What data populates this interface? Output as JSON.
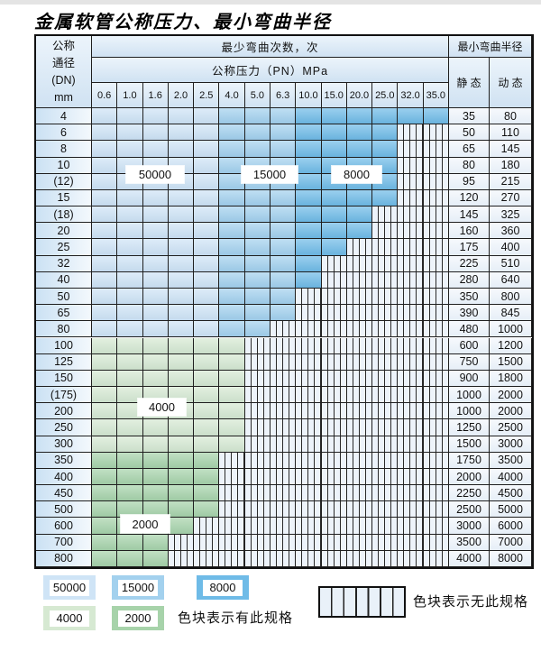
{
  "title": "金属软管公称压力、最小弯曲半径",
  "header": {
    "dn_lines": [
      "公称",
      "通径",
      "(DN)",
      "mm"
    ],
    "cycles_label": "最少弯曲次数，次",
    "radius_label": "最小弯曲半径",
    "pressure_label": "公称压力（PN）MPa",
    "static_label": "静 态",
    "dynamic_label": "动 态"
  },
  "chart_data": {
    "type": "heatmap-table",
    "title": "金属软管公称压力、最小弯曲半径",
    "x_axis_label": "公称压力（PN）MPa",
    "y_axis_label": "公称通径 (DN) mm",
    "columns_pn_mpa": [
      "0.6",
      "1.0",
      "1.6",
      "2.0",
      "2.5",
      "4.0",
      "5.0",
      "6.3",
      "10.0",
      "15.0",
      "20.0",
      "25.0",
      "32.0",
      "35.0"
    ],
    "blue_shade_zones": [
      {
        "cycles": "50000",
        "pn_columns": [
          "0.6",
          "1.0",
          "1.6",
          "2.0",
          "2.5"
        ],
        "col_idx_range": [
          0,
          4
        ]
      },
      {
        "cycles": "15000",
        "pn_columns": [
          "4.0",
          "5.0",
          "6.3"
        ],
        "col_idx_range": [
          5,
          7
        ]
      },
      {
        "cycles": "8000",
        "pn_columns": [
          "10.0",
          "15.0",
          "20.0",
          "25.0",
          "32.0",
          "35.0"
        ],
        "col_idx_range": [
          8,
          13
        ]
      }
    ],
    "green_zones": [
      {
        "cycles": "4000",
        "zone": "green-light",
        "dn_rows": [
          "100",
          "125",
          "150",
          "(175)",
          "200",
          "250",
          "300"
        ]
      },
      {
        "cycles": "2000",
        "zone": "green-dark",
        "dn_rows": [
          "350",
          "400",
          "450",
          "500",
          "600",
          "700",
          "800"
        ]
      }
    ],
    "rows": [
      {
        "dn": "4",
        "zone": "blue",
        "colored_cols": 14,
        "spec_through_pn": "35.0",
        "static_radius": "35",
        "dynamic_radius": "80"
      },
      {
        "dn": "6",
        "zone": "blue",
        "colored_cols": 12,
        "spec_through_pn": "25.0",
        "static_radius": "50",
        "dynamic_radius": "110"
      },
      {
        "dn": "8",
        "zone": "blue",
        "colored_cols": 12,
        "spec_through_pn": "25.0",
        "static_radius": "65",
        "dynamic_radius": "145"
      },
      {
        "dn": "10",
        "zone": "blue",
        "colored_cols": 12,
        "spec_through_pn": "25.0",
        "static_radius": "80",
        "dynamic_radius": "180"
      },
      {
        "dn": "(12)",
        "zone": "blue",
        "colored_cols": 12,
        "spec_through_pn": "25.0",
        "static_radius": "95",
        "dynamic_radius": "215"
      },
      {
        "dn": "15",
        "zone": "blue",
        "colored_cols": 12,
        "spec_through_pn": "25.0",
        "static_radius": "120",
        "dynamic_radius": "270"
      },
      {
        "dn": "(18)",
        "zone": "blue",
        "colored_cols": 11,
        "spec_through_pn": "20.0",
        "static_radius": "145",
        "dynamic_radius": "325"
      },
      {
        "dn": "20",
        "zone": "blue",
        "colored_cols": 11,
        "spec_through_pn": "20.0",
        "static_radius": "160",
        "dynamic_radius": "360"
      },
      {
        "dn": "25",
        "zone": "blue",
        "colored_cols": 10,
        "spec_through_pn": "15.0",
        "static_radius": "175",
        "dynamic_radius": "400"
      },
      {
        "dn": "32",
        "zone": "blue",
        "colored_cols": 9,
        "spec_through_pn": "10.0",
        "static_radius": "225",
        "dynamic_radius": "510"
      },
      {
        "dn": "40",
        "zone": "blue",
        "colored_cols": 9,
        "spec_through_pn": "10.0",
        "static_radius": "280",
        "dynamic_radius": "640"
      },
      {
        "dn": "50",
        "zone": "blue",
        "colored_cols": 8,
        "spec_through_pn": "6.3",
        "static_radius": "350",
        "dynamic_radius": "800"
      },
      {
        "dn": "65",
        "zone": "blue",
        "colored_cols": 8,
        "spec_through_pn": "6.3",
        "static_radius": "390",
        "dynamic_radius": "845"
      },
      {
        "dn": "80",
        "zone": "blue",
        "colored_cols": 7,
        "spec_through_pn": "5.0",
        "static_radius": "480",
        "dynamic_radius": "1000"
      },
      {
        "dn": "100",
        "zone": "green-light",
        "colored_cols": 6,
        "spec_through_pn": "4.0",
        "static_radius": "600",
        "dynamic_radius": "1200"
      },
      {
        "dn": "125",
        "zone": "green-light",
        "colored_cols": 6,
        "spec_through_pn": "4.0",
        "static_radius": "750",
        "dynamic_radius": "1500"
      },
      {
        "dn": "150",
        "zone": "green-light",
        "colored_cols": 6,
        "spec_through_pn": "4.0",
        "static_radius": "900",
        "dynamic_radius": "1800"
      },
      {
        "dn": "(175)",
        "zone": "green-light",
        "colored_cols": 6,
        "spec_through_pn": "4.0",
        "static_radius": "1000",
        "dynamic_radius": "2000"
      },
      {
        "dn": "200",
        "zone": "green-light",
        "colored_cols": 6,
        "spec_through_pn": "4.0",
        "static_radius": "1000",
        "dynamic_radius": "2000"
      },
      {
        "dn": "250",
        "zone": "green-light",
        "colored_cols": 6,
        "spec_through_pn": "4.0",
        "static_radius": "1250",
        "dynamic_radius": "2500"
      },
      {
        "dn": "300",
        "zone": "green-light",
        "colored_cols": 6,
        "spec_through_pn": "4.0",
        "static_radius": "1500",
        "dynamic_radius": "3000"
      },
      {
        "dn": "350",
        "zone": "green-dark",
        "colored_cols": 5,
        "spec_through_pn": "2.5",
        "static_radius": "1750",
        "dynamic_radius": "3500"
      },
      {
        "dn": "400",
        "zone": "green-dark",
        "colored_cols": 5,
        "spec_through_pn": "2.5",
        "static_radius": "2000",
        "dynamic_radius": "4000"
      },
      {
        "dn": "450",
        "zone": "green-dark",
        "colored_cols": 5,
        "spec_through_pn": "2.5",
        "static_radius": "2250",
        "dynamic_radius": "4500"
      },
      {
        "dn": "500",
        "zone": "green-dark",
        "colored_cols": 5,
        "spec_through_pn": "2.5",
        "static_radius": "2500",
        "dynamic_radius": "5000"
      },
      {
        "dn": "600",
        "zone": "green-dark",
        "colored_cols": 4,
        "spec_through_pn": "2.0",
        "static_radius": "3000",
        "dynamic_radius": "6000"
      },
      {
        "dn": "700",
        "zone": "green-dark",
        "colored_cols": 3,
        "spec_through_pn": "1.6",
        "static_radius": "3500",
        "dynamic_radius": "7000"
      },
      {
        "dn": "800",
        "zone": "green-dark",
        "colored_cols": 3,
        "spec_through_pn": "1.6",
        "static_radius": "4000",
        "dynamic_radius": "8000"
      }
    ],
    "cycle_labels_in_table": [
      {
        "text": "50000"
      },
      {
        "text": "15000"
      },
      {
        "text": "8000"
      },
      {
        "text": "4000"
      },
      {
        "text": "2000"
      }
    ]
  },
  "legend": {
    "swatches": [
      {
        "value": "50000",
        "type": "blue-light"
      },
      {
        "value": "15000",
        "type": "blue-mid"
      },
      {
        "value": "8000",
        "type": "blue-dark"
      },
      {
        "value": "4000",
        "type": "green-light"
      },
      {
        "value": "2000",
        "type": "green-dark"
      }
    ],
    "has_spec_label": "色块表示有此规格",
    "no_spec_label": "色块表示无此规格"
  },
  "colors": {
    "blue_light": "#cfe4f6",
    "blue_mid": "#a3d1ee",
    "blue_dark": "#6fbbe7",
    "green_light": "#d6e9d2",
    "green_dark": "#a7d3aa",
    "striped_bg": "#edf3fa",
    "grid": "#1f1f1f"
  }
}
